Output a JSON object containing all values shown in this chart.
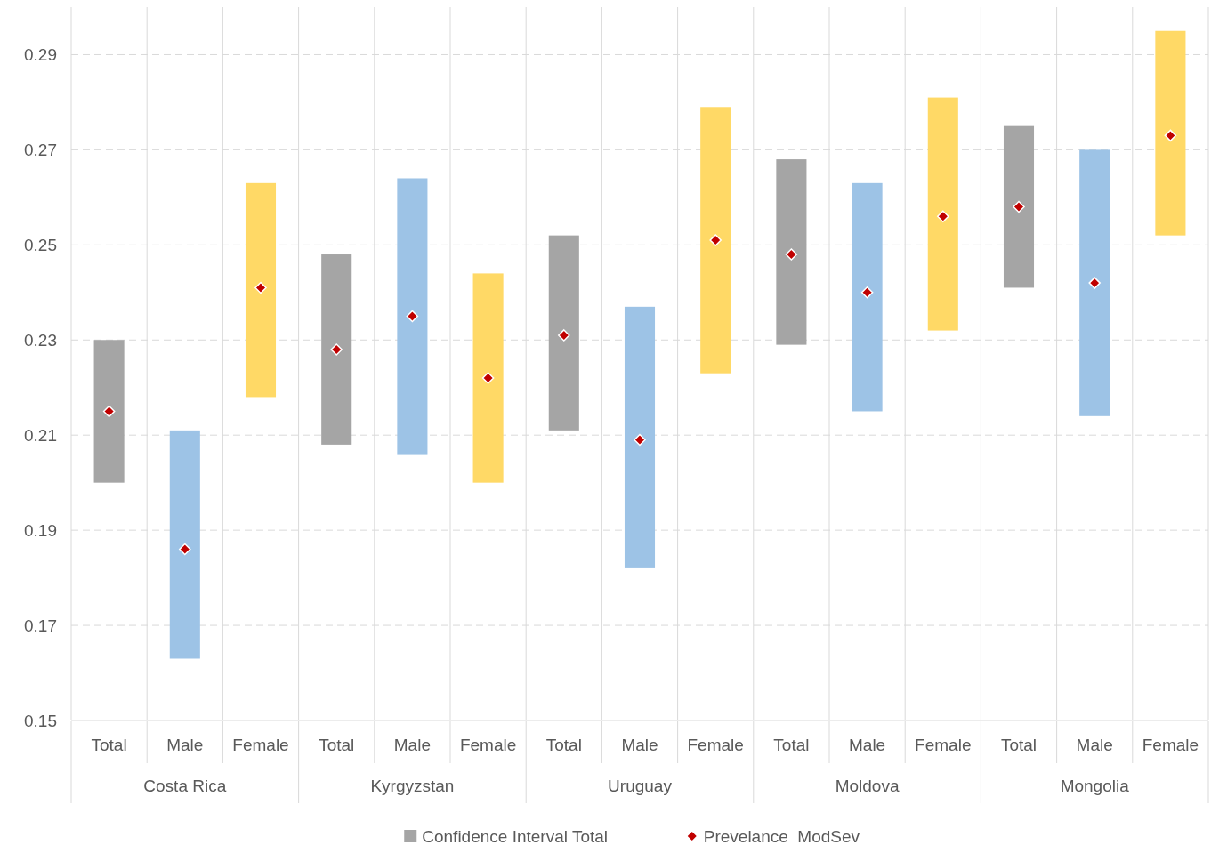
{
  "chart_data": {
    "type": "bar",
    "categories": [
      "Total",
      "Male",
      "Female",
      "Total",
      "Male",
      "Female",
      "Total",
      "Male",
      "Female",
      "Total",
      "Male",
      "Female",
      "Total",
      "Male",
      "Female"
    ],
    "annotations": [
      "Costa Rica",
      "Kyrgyzstan",
      "Uruguay",
      "Moldova",
      "Mongolia"
    ],
    "series": [
      {
        "name": "Confidence Interval Total",
        "color": "#a5a5a5",
        "colors": [
          "#a5a5a5",
          "#9dc3e6",
          "#ffd966",
          "#a5a5a5",
          "#9dc3e6",
          "#ffd966",
          "#a5a5a5",
          "#9dc3e6",
          "#ffd966",
          "#a5a5a5",
          "#9dc3e6",
          "#ffd966",
          "#a5a5a5",
          "#9dc3e6",
          "#ffd966"
        ],
        "base": [
          0.2,
          0.163,
          0.218,
          0.208,
          0.206,
          0.2,
          0.211,
          0.182,
          0.223,
          0.229,
          0.215,
          0.232,
          0.241,
          0.214,
          0.252
        ],
        "values": [
          0.03,
          0.048,
          0.045,
          0.04,
          0.058,
          0.044,
          0.041,
          0.055,
          0.056,
          0.039,
          0.048,
          0.049,
          0.034,
          0.056,
          0.043
        ]
      },
      {
        "name": "Prevelance  ModSev",
        "type": "scatter",
        "color": "#c00000",
        "marker": "diamond",
        "values": [
          0.215,
          0.186,
          0.241,
          0.228,
          0.235,
          0.222,
          0.231,
          0.209,
          0.251,
          0.248,
          0.24,
          0.256,
          0.258,
          0.242,
          0.273
        ]
      }
    ],
    "ylim": [
      0.15,
      0.3
    ],
    "yticks": [
      0.15,
      0.17,
      0.19,
      0.21,
      0.23,
      0.25,
      0.27,
      0.29
    ],
    "grid": "y",
    "legend": "bottom"
  }
}
